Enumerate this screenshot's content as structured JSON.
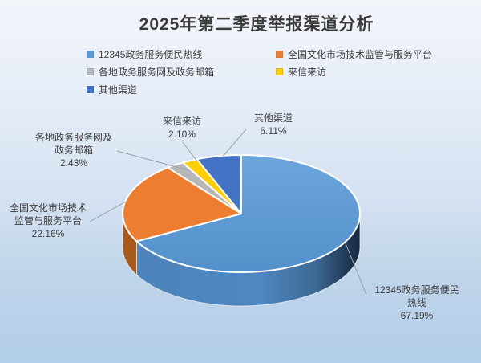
{
  "page": {
    "background_top": "#F2F5FA",
    "background_bottom": "#B4CFE9"
  },
  "chart_data": {
    "type": "pie",
    "style": "3d",
    "title": "2025年第二季度举报渠道分析",
    "unit": "%",
    "legend_position": "top-two-columns",
    "categories": [
      "12345政务服务便民热线",
      "全国文化市场技术监管与服务平台",
      "各地政务服务网及政务邮箱",
      "来信来访",
      "其他渠道"
    ],
    "values": [
      67.19,
      22.16,
      2.43,
      2.1,
      6.11
    ],
    "colors": [
      "#5B9BD5",
      "#ED7D31",
      "#B7B7B7",
      "#FFCE07",
      "#4472C4"
    ],
    "legend_columns": {
      "left": [
        0,
        2,
        4
      ],
      "right": [
        1,
        3
      ]
    },
    "data_labels": [
      {
        "category_index": 0,
        "lines": [
          "12345政务服务便民",
          "热线",
          "67.19%"
        ]
      },
      {
        "category_index": 1,
        "lines": [
          "全国文化市场技术",
          "监管与服务平台",
          "22.16%"
        ]
      },
      {
        "category_index": 2,
        "lines": [
          "各地政务服务网及",
          "政务邮箱",
          "2.43%"
        ]
      },
      {
        "category_index": 3,
        "lines": [
          "来信来访",
          "2.10%"
        ]
      },
      {
        "category_index": 4,
        "lines": [
          "其他渠道",
          "6.11%"
        ]
      }
    ]
  }
}
